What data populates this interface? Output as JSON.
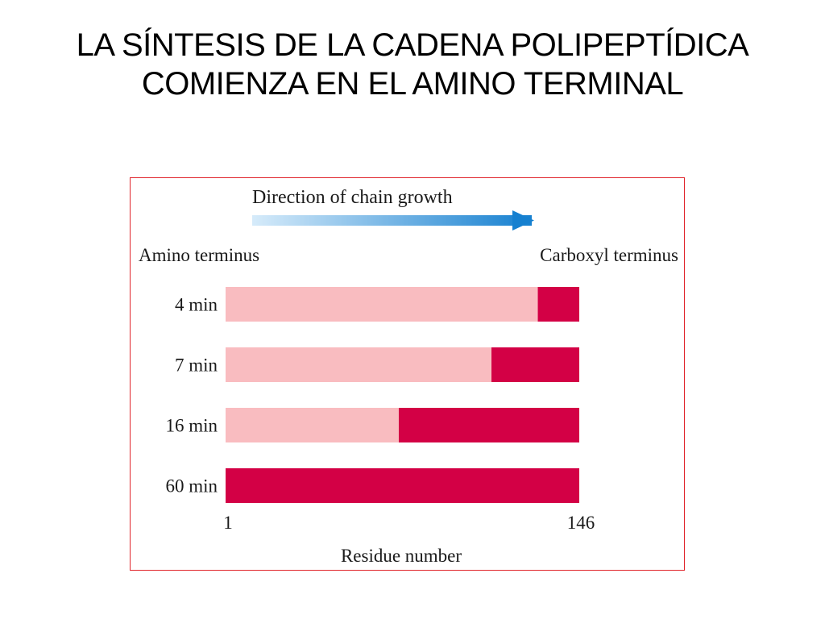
{
  "slide": {
    "title_line1": "LA SÍNTESIS DE LA CADENA POLIPEPTÍDICA",
    "title_line2": "COMIENZA EN EL AMINO TERMINAL"
  },
  "figure": {
    "direction_label": "Direction of chain growth",
    "left_label": "Amino terminus",
    "right_label": "Carboxyl terminus",
    "axis_label": "Residue number",
    "residue_start": 1,
    "residue_end": 146,
    "residue_start_label": "1",
    "residue_end_label": "146",
    "colors": {
      "unlabeled": "#f9bcc0",
      "labeled": "#d30045",
      "arrow_start": "#d6ebfa",
      "arrow_end": "#1680d0",
      "frame": "#e0242b"
    },
    "rows": [
      {
        "time_label": "4 min",
        "labeled_from_residue": 129
      },
      {
        "time_label": "7 min",
        "labeled_from_residue": 110
      },
      {
        "time_label": "16 min",
        "labeled_from_residue": 72
      },
      {
        "time_label": "60 min",
        "labeled_from_residue": 1
      }
    ]
  }
}
